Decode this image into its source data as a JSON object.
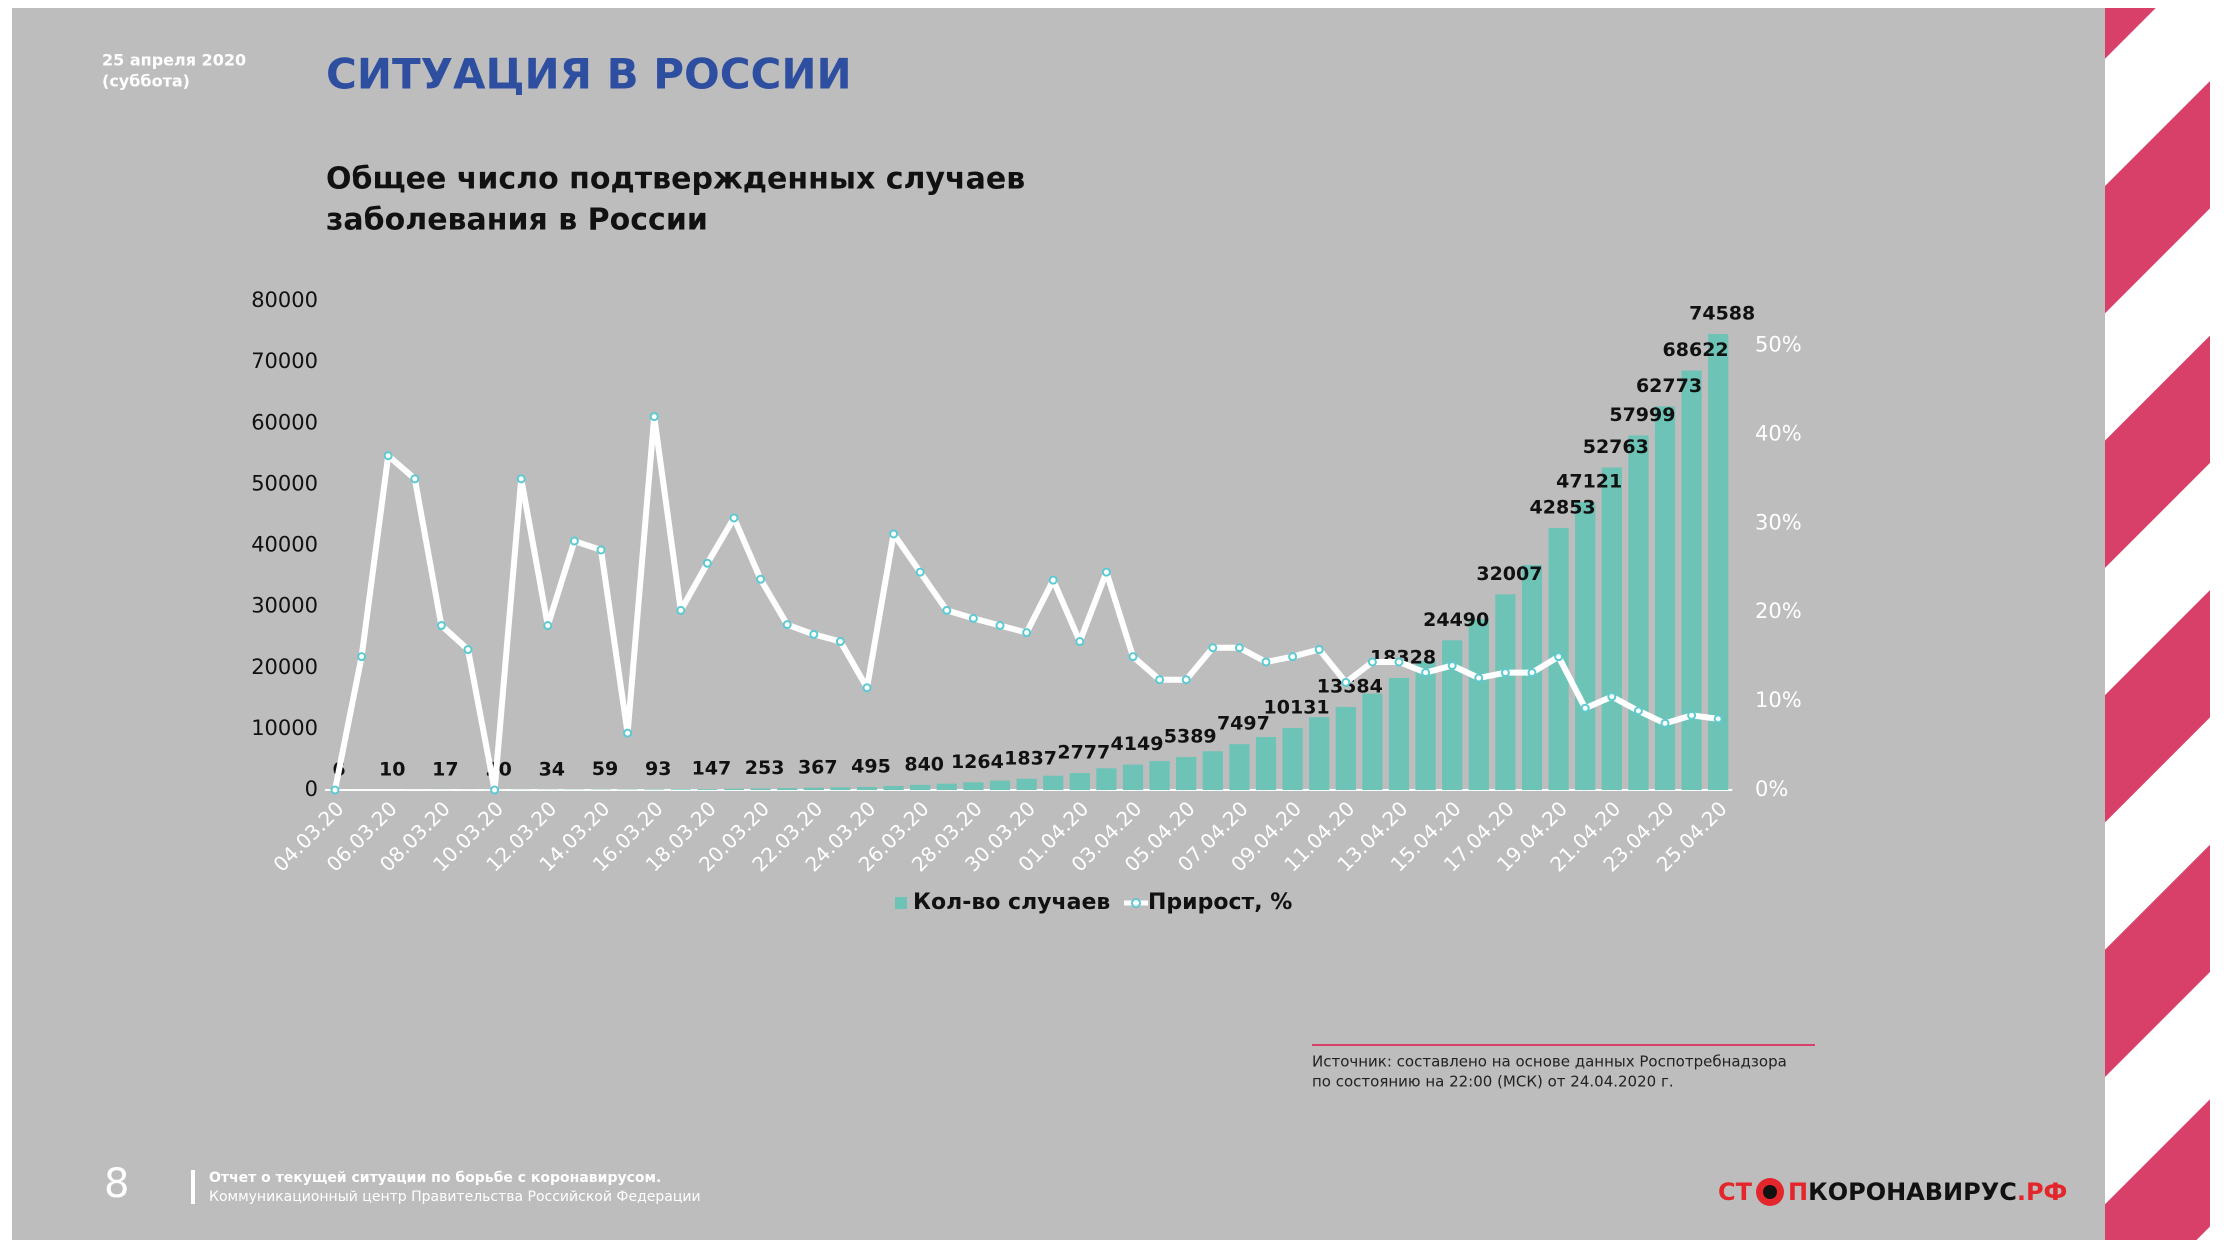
{
  "header": {
    "date": "25 апреля 2020",
    "weekday": "(суббота)",
    "title": "СИТУАЦИЯ В РОССИИ"
  },
  "chart_data": {
    "type": "bar",
    "title": [
      "Общее число подтвержденных случаев",
      "заболевания в России"
    ],
    "categories": [
      "04.03.20",
      null,
      "06.03.20",
      null,
      "08.03.20",
      null,
      "10.03.20",
      null,
      "12.03.20",
      null,
      "14.03.20",
      null,
      "16.03.20",
      null,
      "18.03.20",
      null,
      "20.03.20",
      null,
      "22.03.20",
      null,
      "24.03.20",
      null,
      "26.03.20",
      null,
      "28.03.20",
      null,
      "30.03.20",
      null,
      "01.04.20",
      null,
      "03.04.20",
      null,
      "05.04.20",
      null,
      "07.04.20",
      null,
      "09.04.20",
      null,
      "11.04.20",
      null,
      "13.04.20",
      null,
      "15.04.20",
      null,
      "17.04.20",
      null,
      "19.04.20",
      null,
      "21.04.20",
      null,
      "23.04.20",
      null,
      "25.04.20"
    ],
    "series": [
      {
        "name": "Кол-во случаев",
        "type": "bar",
        "color": "#6cc3b6",
        "values": [
          6,
          8,
          10,
          14,
          17,
          17,
          20,
          28,
          34,
          45,
          59,
          63,
          93,
          114,
          147,
          199,
          253,
          306,
          367,
          438,
          495,
          658,
          840,
          1036,
          1264,
          1534,
          1837,
          2337,
          2777,
          3548,
          4149,
          4731,
          5389,
          6343,
          7497,
          8672,
          10131,
          11917,
          13584,
          15770,
          18328,
          21102,
          24490,
          27938,
          32007,
          36793,
          42853,
          47121,
          52763,
          57999,
          62773,
          68622,
          74588
        ],
        "value_labels": [
          "6",
          null,
          "10",
          null,
          "17",
          null,
          "20",
          null,
          "34",
          null,
          "59",
          null,
          "93",
          null,
          "147",
          null,
          "253",
          null,
          "367",
          null,
          "495",
          null,
          "840",
          null,
          "1264",
          null,
          "1837",
          null,
          "2777",
          null,
          "4149",
          null,
          "5389",
          null,
          "7497",
          null,
          "10131",
          null,
          "13584",
          null,
          "18328",
          null,
          "24490",
          null,
          "32007",
          null,
          "42853",
          "47121",
          "52763",
          "57999",
          "62773",
          "68622",
          "74588"
        ]
      },
      {
        "name": "Прирост, %",
        "type": "line",
        "axis": "y2",
        "color": "#ffffff",
        "marker_color": "#5ccad2",
        "values": [
          0,
          15,
          37.6,
          35,
          18.5,
          15.8,
          0,
          35,
          18.5,
          28,
          27,
          6.4,
          42,
          20.2,
          25.5,
          30.6,
          23.7,
          18.6,
          17.5,
          16.7,
          11.5,
          28.8,
          24.5,
          20.2,
          19.3,
          18.5,
          17.7,
          23.6,
          16.7,
          24.5,
          15,
          12.4,
          12.4,
          16,
          16,
          14.4,
          15,
          15.8,
          12.1,
          14.4,
          14.4,
          13.2,
          14,
          12.6,
          13.2,
          13.2,
          15,
          9.2,
          10.5,
          8.9,
          7.5,
          8.4,
          8
        ]
      }
    ],
    "ylim": [
      0,
      80000
    ],
    "yticks": [
      0,
      10000,
      20000,
      30000,
      40000,
      50000,
      60000,
      70000,
      80000
    ],
    "y2lim": [
      0,
      55
    ],
    "y2ticks": [
      {
        "value": 0,
        "label": "0%"
      },
      {
        "value": 10,
        "label": "10%"
      },
      {
        "value": 20,
        "label": "20%"
      },
      {
        "value": 30,
        "label": "30%"
      },
      {
        "value": 40,
        "label": "40%"
      },
      {
        "value": 50,
        "label": "50%"
      }
    ]
  },
  "source": [
    "Источник: составлено на основе данных  Роспотребнадзора",
    "по состоянию на 22:00 (МСК) от 24.04.2020 г."
  ],
  "footer": {
    "page": "8",
    "line1": "Отчет о текущей ситуации по борьбе с коронавирусом.",
    "line2": "Коммуникационный центр Правительства Российской Федерации"
  },
  "logo": {
    "part1": "СТ",
    "part2": "П",
    "part3": "КОРОНАВИРУС",
    "part4": ".РФ"
  }
}
